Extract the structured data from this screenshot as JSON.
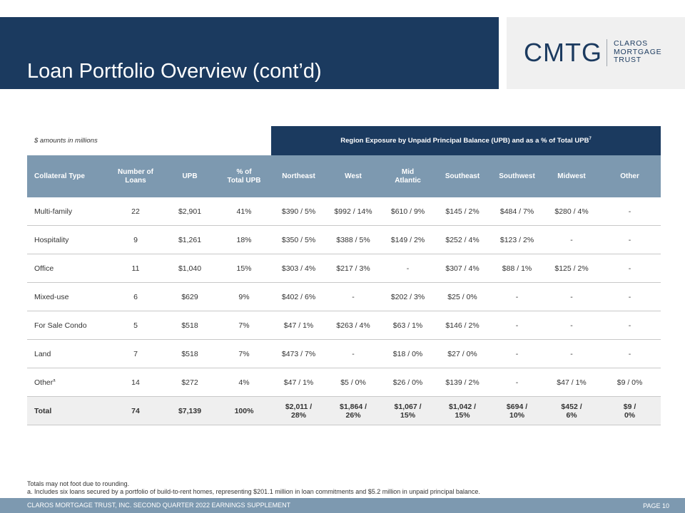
{
  "header": {
    "title": "Loan Portfolio Overview (cont’d)",
    "logo_main": "CMTG",
    "logo_sub_lines": [
      "CLAROS",
      "MORTGAGE",
      "TRUST"
    ]
  },
  "table": {
    "amount_note": "$ amounts in millions",
    "region_header": "Region Exposure by Unpaid Principal Balance (UPB) and as a % of Total UPB",
    "region_header_sup": "7",
    "columns": [
      "Collateral Type",
      "Number of\nLoans",
      "UPB",
      "% of\nTotal UPB",
      "Northeast",
      "West",
      "Mid\nAtlantic",
      "Southeast",
      "Southwest",
      "Midwest",
      "Other"
    ],
    "rows": [
      {
        "type": "Multi-family",
        "sup": "",
        "cells": [
          "22",
          "$2,901",
          "41%",
          "$390 / 5%",
          "$992 / 14%",
          "$610 / 9%",
          "$145 / 2%",
          "$484 / 7%",
          "$280 / 4%",
          "-"
        ]
      },
      {
        "type": "Hospitality",
        "sup": "",
        "cells": [
          "9",
          "$1,261",
          "18%",
          "$350 / 5%",
          "$388 / 5%",
          "$149 / 2%",
          "$252 / 4%",
          "$123 / 2%",
          "-",
          "-"
        ]
      },
      {
        "type": "Office",
        "sup": "",
        "cells": [
          "11",
          "$1,040",
          "15%",
          "$303 / 4%",
          "$217 / 3%",
          "-",
          "$307 / 4%",
          "$88 / 1%",
          "$125 / 2%",
          "-"
        ]
      },
      {
        "type": "Mixed-use",
        "sup": "",
        "cells": [
          "6",
          "$629",
          "9%",
          "$402 / 6%",
          "-",
          "$202 / 3%",
          "$25 / 0%",
          "-",
          "-",
          "-"
        ]
      },
      {
        "type": "For Sale Condo",
        "sup": "",
        "cells": [
          "5",
          "$518",
          "7%",
          "$47 / 1%",
          "$263 / 4%",
          "$63 / 1%",
          "$146 / 2%",
          "-",
          "-",
          "-"
        ]
      },
      {
        "type": "Land",
        "sup": "",
        "cells": [
          "7",
          "$518",
          "7%",
          "$473 / 7%",
          "-",
          "$18 / 0%",
          "$27 / 0%",
          "-",
          "-",
          "-"
        ]
      },
      {
        "type": "Other",
        "sup": "a",
        "cells": [
          "14",
          "$272",
          "4%",
          "$47 / 1%",
          "$5 / 0%",
          "$26 / 0%",
          "$139 / 2%",
          "-",
          "$47 / 1%",
          "$9 / 0%"
        ]
      }
    ],
    "total": {
      "type": "Total",
      "cells": [
        "74",
        "$7,139",
        "100%",
        "$2,011 /\n28%",
        "$1,864 /\n26%",
        "$1,067 /\n15%",
        "$1,042 /\n15%",
        "$694 /\n10%",
        "$452 /\n6%",
        "$9 /\n0%"
      ]
    }
  },
  "footnotes": [
    "Totals may not foot due to rounding.",
    "a. Includes six loans secured by a portfolio of build-to-rent homes, representing $201.1 million in loan commitments and $5.2 million in unpaid principal balance."
  ],
  "footer": {
    "left": "CLAROS MORTGAGE TRUST, INC. SECOND QUARTER 2022 EARNINGS SUPPLEMENT",
    "right": "PAGE 10"
  },
  "colors": {
    "navy": "#1b3a5f",
    "steel_blue": "#7d99b0",
    "total_row_bg": "#efefef"
  }
}
